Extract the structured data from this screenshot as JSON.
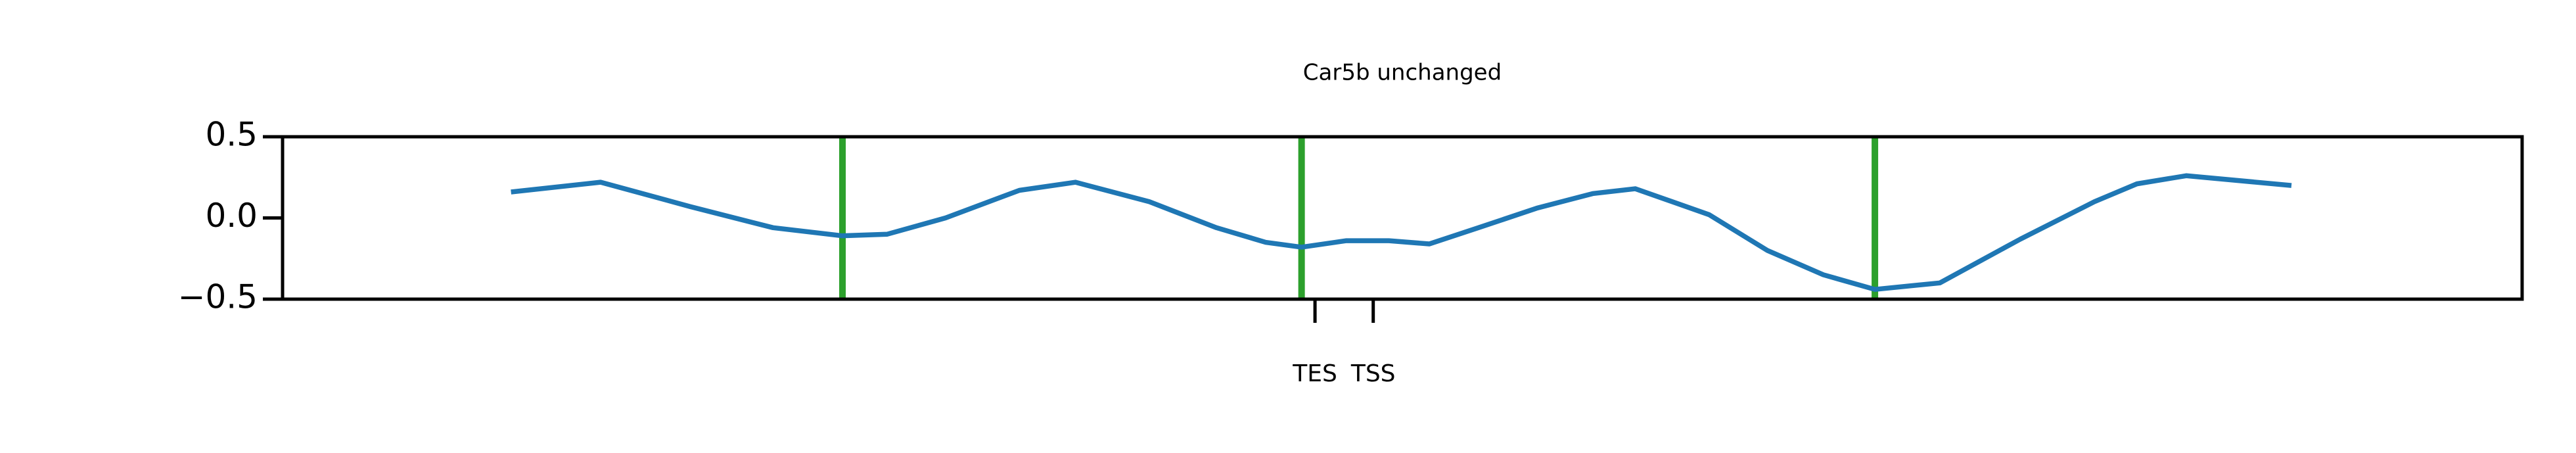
{
  "chart_data": {
    "type": "line",
    "title": "Car5b unchanged",
    "x": [
      10.2,
      14.2,
      18.2,
      21.9,
      25.0,
      27.0,
      29.6,
      32.9,
      35.4,
      38.7,
      41.7,
      43.9,
      45.5,
      47.5,
      49.4,
      51.2,
      53.4,
      56.0,
      58.5,
      60.4,
      63.7,
      66.3,
      68.8,
      71.1,
      74.0,
      77.6,
      80.9,
      82.8,
      85.0,
      89.7
    ],
    "values": [
      0.16,
      0.22,
      0.07,
      -0.06,
      -0.11,
      -0.1,
      0.0,
      0.17,
      0.22,
      0.1,
      -0.06,
      -0.15,
      -0.18,
      -0.14,
      -0.14,
      -0.16,
      -0.06,
      0.06,
      0.15,
      0.18,
      0.02,
      -0.2,
      -0.35,
      -0.44,
      -0.4,
      -0.13,
      0.1,
      0.21,
      0.26,
      0.2
    ],
    "color": "#1f77b4",
    "vlines": {
      "x": [
        25.0,
        45.5,
        71.1
      ],
      "color": "#2ca02c"
    },
    "xlim": [
      0,
      100
    ],
    "xticks": [
      {
        "value": 46.1,
        "label": "TES"
      },
      {
        "value": 48.7,
        "label": "TSS"
      }
    ],
    "ylim": [
      -0.5,
      0.5
    ],
    "yticks": [
      {
        "value": -0.5,
        "label": "−0.5"
      },
      {
        "value": 0,
        "label": "0.0"
      },
      0.5
    ]
  }
}
